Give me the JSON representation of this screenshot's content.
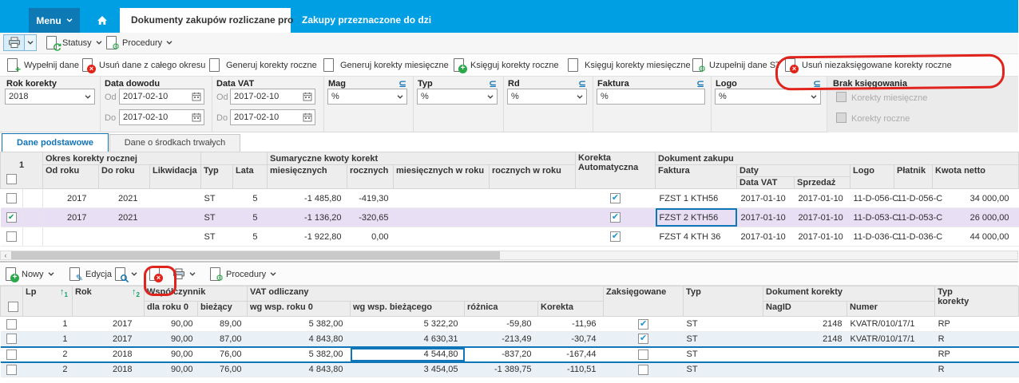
{
  "colors": {
    "topbar": "#009FE3",
    "menu_button": "#0D79B5",
    "accent_blue": "#1075B5",
    "negative_number": "#E03C2F",
    "selected_row": "#E9DFF5",
    "annotation_red": "#E0231C",
    "check_green": "#12A062",
    "check_blue": "#1E96D2"
  },
  "icons": {
    "checkmark": "✔",
    "subset": "⊆",
    "sort_asc": "↑",
    "plus": "+",
    "close": "×",
    "gear": "⚙",
    "pencil": "✎",
    "arrow_right": "→"
  },
  "topbar": {
    "menu_label": "Menu",
    "tabs": [
      {
        "label": "Dokumenty zakupów rozliczane pro",
        "active": true
      },
      {
        "label": "Zakupy przeznaczone do dzi",
        "active": false
      }
    ]
  },
  "toolbar_top": {
    "statusy_label": "Statusy",
    "procedury_label": "Procedury"
  },
  "actions": [
    {
      "label": "Wypełnij dane",
      "icon": "doc-plus"
    },
    {
      "label": "Usuń dane z całego okresu",
      "icon": "doc-delete"
    },
    {
      "label": "Generuj korekty roczne",
      "icon": "arrow-doc-purple"
    },
    {
      "label": "Generuj korekty miesięczne",
      "icon": "arrow-doc-green"
    },
    {
      "label": "Księguj korekty roczne",
      "icon": "doc-plus-circle"
    },
    {
      "label": "Księguj korekty miesięczne",
      "icon": "doc-plain"
    },
    {
      "label": "Uzupełnij dane ST",
      "icon": "doc-gears"
    },
    {
      "label": "Usuń niezaksięgowane korekty roczne",
      "icon": "doc-delete",
      "annotated": true
    }
  ],
  "filters": {
    "rok_korekty": {
      "label": "Rok korekty",
      "value": "2018"
    },
    "data_dowodu": {
      "label": "Data dowodu",
      "od_label": "Od",
      "do_label": "Do",
      "od": "2017-02-10",
      "do": "2017-02-10"
    },
    "data_vat": {
      "label": "Data VAT",
      "od_label": "Od",
      "do_label": "Do",
      "od": "2017-02-10",
      "do": "2017-02-10"
    },
    "mag": {
      "label": "Mag",
      "value": "%"
    },
    "typ": {
      "label": "Typ",
      "value": "%"
    },
    "rd": {
      "label": "Rd",
      "value": "%"
    },
    "faktura": {
      "label": "Faktura",
      "value": "%"
    },
    "logo": {
      "label": "Logo",
      "value": "%"
    },
    "brak_ksiegowania": {
      "label": "Brak księgowania",
      "options": [
        {
          "label": "Korekty miesięczne",
          "checked": false,
          "disabled": true
        },
        {
          "label": "Korekty roczne",
          "checked": false,
          "disabled": true
        }
      ]
    }
  },
  "view_tabs": [
    {
      "label": "Dane podstawowe",
      "active": true
    },
    {
      "label": "Dane o środkach trwałych",
      "active": false
    }
  ],
  "table1": {
    "row_count_header": "1",
    "groups": {
      "okres": "Okres korekty rocznej",
      "sumy": "Sumaryczne kwoty korekt",
      "korekta_line1": "Korekta",
      "korekta_line2": "Automatyczna",
      "dokument": "Dokument zakupu",
      "daty": "Daty"
    },
    "columns": {
      "od": "Od roku",
      "do": "Do roku",
      "likwidacja": "Likwidacja",
      "typ": "Typ",
      "lata": "Lata",
      "miesiecznych": "miesięcznych",
      "rocznych": "rocznych",
      "miesiecznych_w_roku": "miesięcznych w roku",
      "rocznych_w_roku": "rocznych w roku",
      "faktura": "Faktura",
      "data_vat": "Data VAT",
      "sprzedaz": "Sprzedaż",
      "logo": "Logo",
      "platnik": "Płatnik",
      "kwota_netto": "Kwota netto"
    },
    "rows": [
      {
        "checked": false,
        "selected": false,
        "focused_cell": null,
        "od": "2017",
        "do": "2021",
        "likwidacja": "",
        "typ": "ST",
        "lata": "5",
        "miesiecznych": "-1 485,80",
        "rocznych": "-419,30",
        "miesiecznych_w_roku": "",
        "rocznych_w_roku": "",
        "automatyczna": true,
        "faktura": "FZST 1 KTH56",
        "data_vat": "2017-01-10",
        "sprzedaz": "2017-01-10",
        "logo": "11-D-056-C",
        "platnik": "11-D-056-C",
        "kwota_netto": "34 000,00"
      },
      {
        "checked": true,
        "selected": true,
        "focused_cell": "faktura",
        "od": "2017",
        "do": "2021",
        "likwidacja": "",
        "typ": "ST",
        "lata": "5",
        "miesiecznych": "-1 136,20",
        "rocznych": "-320,65",
        "miesiecznych_w_roku": "",
        "rocznych_w_roku": "",
        "automatyczna": true,
        "faktura": "FZST 2 KTH56",
        "data_vat": "2017-01-10",
        "sprzedaz": "2017-01-10",
        "logo": "11-D-053-C",
        "platnik": "11-D-053-C",
        "kwota_netto": "26 000,00"
      },
      {
        "checked": false,
        "selected": false,
        "focused_cell": null,
        "od": "",
        "do": "",
        "likwidacja": "",
        "typ": "ST",
        "lata": "5",
        "miesiecznych": "-1 922,80",
        "rocznych": "0,00",
        "miesiecznych_w_roku": "",
        "rocznych_w_roku": "",
        "automatyczna": true,
        "faktura": "FZST 4 KTH 36",
        "data_vat": "2017-01-10",
        "sprzedaz": "2017-01-10",
        "logo": "11-D-036-C",
        "platnik": "11-D-036-C",
        "kwota_netto": "44 000,00"
      }
    ]
  },
  "toolbar_bottom": {
    "nowy_label": "Nowy",
    "edycja_label": "Edycja",
    "procedury_label": "Procedury"
  },
  "table2": {
    "groups": {
      "wspolczynnik": "Współczynnik",
      "vat": "VAT odliczany",
      "dokument": "Dokument korekty"
    },
    "columns": {
      "lp": "Lp",
      "rok": "Rok",
      "dla_roku_0": "dla roku 0",
      "biezacy": "bieżący",
      "wg_wsp_roku_0": "wg wsp. roku 0",
      "wg_wsp_biezacego": "wg wsp. bieżącego",
      "roznica": "różnica",
      "korekta": "Korekta",
      "zaksiegowane": "Zaksięgowane",
      "typ": "Typ",
      "nagid": "NagID",
      "numer": "Numer",
      "typ_korekty_l1": "Typ",
      "typ_korekty_l2": "korekty"
    },
    "sort": {
      "lp": "1",
      "rok": "2"
    },
    "rows": [
      {
        "checked": false,
        "focused_row": false,
        "focused_cell": null,
        "lp": "1",
        "rok": "2017",
        "dla_roku_0": "90,00",
        "biezacy": "89,00",
        "wg_wsp_roku_0": "5 382,00",
        "wg_wsp_biezacego": "5 322,20",
        "roznica": "-59,80",
        "korekta": "-11,96",
        "zaksiegowane": true,
        "typ": "ST",
        "nagid": "2148",
        "numer": "KVATR/010/17/1",
        "typ_korekty": "RP"
      },
      {
        "checked": false,
        "focused_row": false,
        "focused_cell": null,
        "lp": "1",
        "rok": "2017",
        "dla_roku_0": "90,00",
        "biezacy": "87,00",
        "wg_wsp_roku_0": "4 843,80",
        "wg_wsp_biezacego": "4 630,31",
        "roznica": "-213,49",
        "korekta": "-30,74",
        "zaksiegowane": true,
        "typ": "ST",
        "nagid": "2148",
        "numer": "KVATR/010/17/1",
        "typ_korekty": "R"
      },
      {
        "checked": false,
        "focused_row": true,
        "focused_cell": "wg_wsp_biezacego",
        "lp": "2",
        "rok": "2018",
        "dla_roku_0": "90,00",
        "biezacy": "76,00",
        "wg_wsp_roku_0": "5 382,00",
        "wg_wsp_biezacego": "4 544,80",
        "roznica": "-837,20",
        "korekta": "-167,44",
        "zaksiegowane": false,
        "typ": "ST",
        "nagid": "",
        "numer": "",
        "typ_korekty": "RP"
      },
      {
        "checked": false,
        "focused_row": false,
        "focused_cell": null,
        "lp": "2",
        "rok": "2018",
        "dla_roku_0": "90,00",
        "biezacy": "76,00",
        "wg_wsp_roku_0": "4 843,80",
        "wg_wsp_biezacego": "3 454,05",
        "roznica": "-1 389,75",
        "korekta": "-110,51",
        "zaksiegowane": false,
        "typ": "ST",
        "nagid": "",
        "numer": "",
        "typ_korekty": "R"
      }
    ]
  }
}
